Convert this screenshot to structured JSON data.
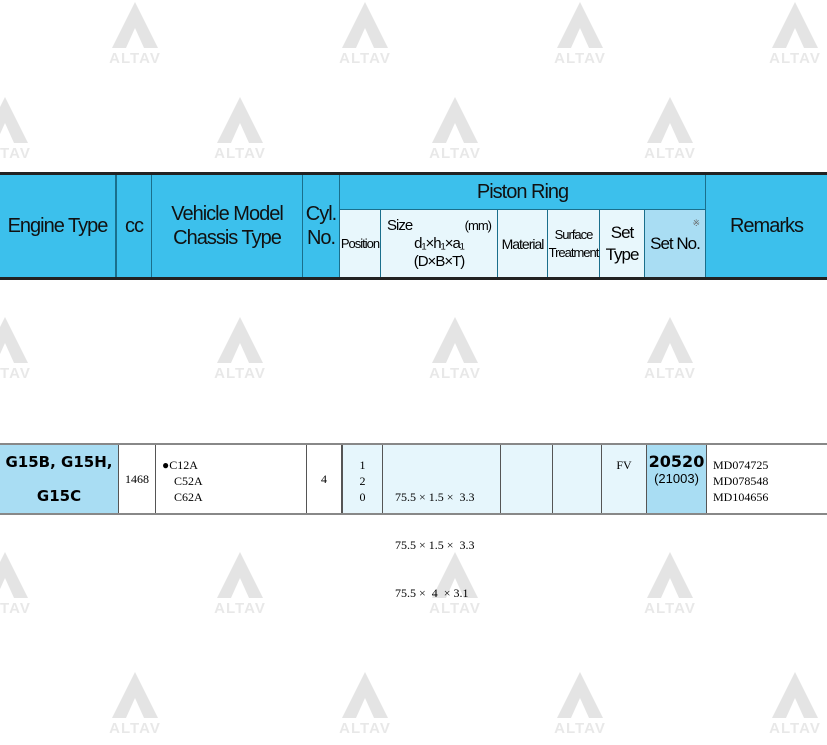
{
  "watermark": "ALTAV",
  "header": {
    "engine_type": "Engine Type",
    "cc": "cc",
    "vehicle_model": "Vehicle Model",
    "chassis_type": "Chassis Type",
    "cyl": "Cyl.",
    "no": "No.",
    "piston_ring": "Piston Ring",
    "position": "Position",
    "size": "Size",
    "size_unit": "(mm)",
    "size_formula": "d₁×h₁×a₁",
    "size_formula2": "(D×B×T)",
    "material": "Material",
    "surface": "Surface",
    "treatment": "Treatment",
    "set": "Set",
    "type": "Type",
    "set_no": "Set No.",
    "set_no_mark": "※",
    "remarks": "Remarks"
  },
  "row": {
    "engine_line1": "G15B, G15H,",
    "engine_line2": "G15C",
    "cc": "1468",
    "models": [
      "●C12A",
      "C52A",
      "C62A"
    ],
    "cyl": "4",
    "positions": [
      "1",
      "2",
      "0"
    ],
    "sizes": [
      "75.5 × 1.5 ×  3.3",
      "75.5 × 1.5 ×  3.3",
      "75.5 ×  4  × 3.1"
    ],
    "material": "",
    "surface": "",
    "set_type": "FV",
    "set_no": "20520",
    "set_no_alt": "(21003)",
    "remarks": [
      "MD074725",
      "MD078548",
      "MD104656"
    ]
  },
  "colors": {
    "header_blue": "#3cc0ec",
    "set_no_blue": "#a9ddf3",
    "pale_blue": "#e6f6fc"
  }
}
